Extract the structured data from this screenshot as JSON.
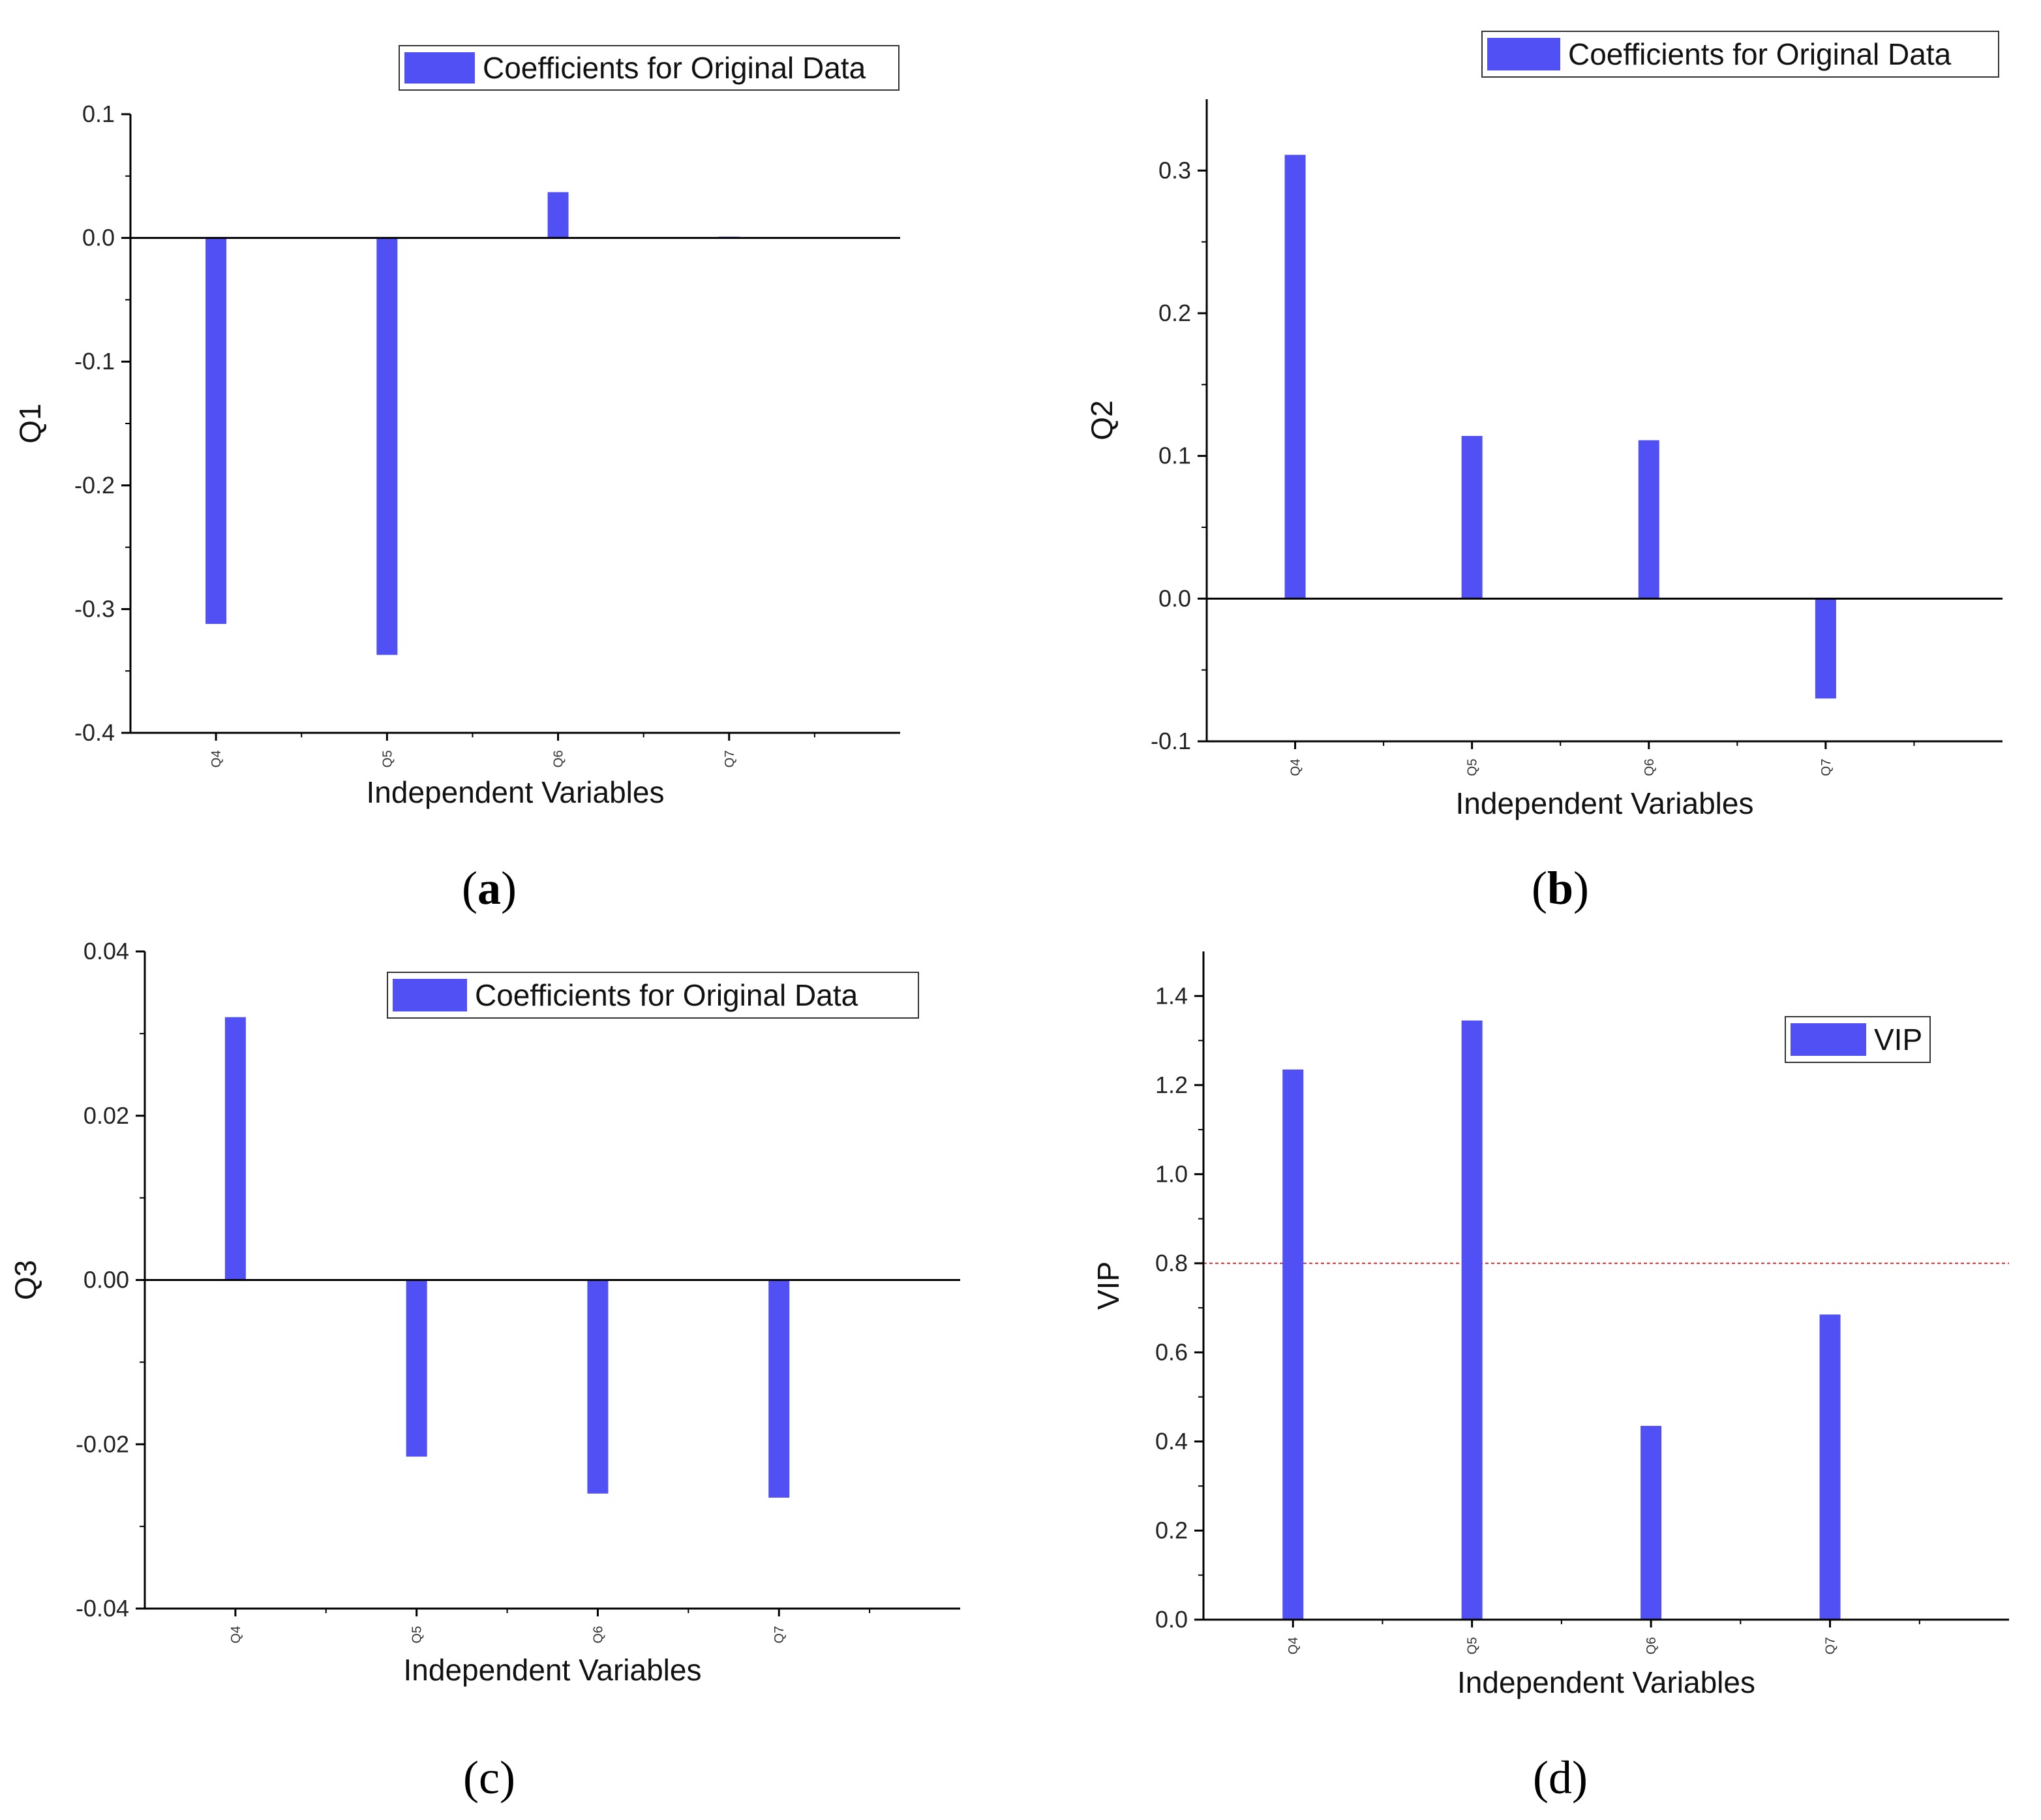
{
  "chart_data": [
    {
      "panel": "a",
      "type": "bar",
      "categories": [
        "Q4",
        "Q5",
        "Q6",
        "Q7"
      ],
      "values": [
        -0.312,
        -0.337,
        0.037,
        0.001
      ],
      "ylabel": "Q1",
      "xlabel": "Independent Variables",
      "ylim": [
        -0.4,
        0.1
      ],
      "yticks": [
        0.1,
        0.0,
        -0.1,
        -0.2,
        -0.3,
        -0.4
      ],
      "ytick_labels": [
        "0.1",
        "0.0",
        "-0.1",
        "-0.2",
        "-0.3",
        "-0.4"
      ],
      "legend": "Coefficients for Original Data",
      "legend_position": "top-right",
      "caption_label": "a",
      "caption_bold": true
    },
    {
      "panel": "b",
      "type": "bar",
      "categories": [
        "Q4",
        "Q5",
        "Q6",
        "Q7"
      ],
      "values": [
        0.311,
        0.114,
        0.111,
        -0.07
      ],
      "ylabel": "Q2",
      "xlabel": "Independent Variables",
      "ylim": [
        -0.1,
        0.35
      ],
      "yticks": [
        0.3,
        0.2,
        0.1,
        0.0,
        -0.1
      ],
      "ytick_labels": [
        "0.3",
        "0.2",
        "0.1",
        "0.0",
        "-0.1"
      ],
      "legend": "Coefficients for Original Data",
      "legend_position": "top-right",
      "caption_label": "b",
      "caption_bold": true
    },
    {
      "panel": "c",
      "type": "bar",
      "categories": [
        "Q4",
        "Q5",
        "Q6",
        "Q7"
      ],
      "values": [
        0.032,
        -0.0215,
        -0.026,
        -0.0265
      ],
      "ylabel": "Q3",
      "xlabel": "Independent Variables",
      "ylim": [
        -0.04,
        0.04
      ],
      "yticks": [
        0.04,
        0.02,
        0.0,
        -0.02,
        -0.04
      ],
      "ytick_labels": [
        "0.04",
        "0.02",
        "0.00",
        "-0.02",
        "-0.04"
      ],
      "legend": "Coefficients for Original Data",
      "legend_position": "top-right",
      "caption_label": "c",
      "caption_bold": false
    },
    {
      "panel": "d",
      "type": "bar",
      "categories": [
        "Q4",
        "Q5",
        "Q6",
        "Q7"
      ],
      "values": [
        1.235,
        1.345,
        0.435,
        0.685
      ],
      "ylabel": "VIP",
      "xlabel": "Independent Variables",
      "ylim": [
        0.0,
        1.5
      ],
      "yticks": [
        1.4,
        1.2,
        1.0,
        0.8,
        0.6,
        0.4,
        0.2,
        0.0
      ],
      "ytick_labels": [
        "1.4",
        "1.2",
        "1.0",
        "0.8",
        "0.6",
        "0.4",
        "0.2",
        "0.0"
      ],
      "legend": "VIP",
      "legend_position": "top-right",
      "threshold": 0.8,
      "threshold_color": "#e03030",
      "caption_label": "d",
      "caption_bold": false
    }
  ],
  "colors": {
    "bar": "#5050f5",
    "axis": "#000000"
  }
}
